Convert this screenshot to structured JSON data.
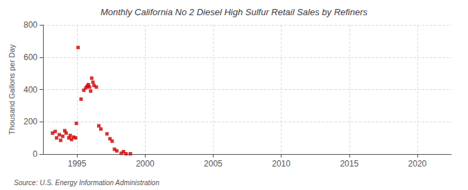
{
  "chart_data": {
    "type": "scatter",
    "title": "Monthly California No 2 Diesel High Sulfur Retail Sales by Refiners",
    "ylabel": "Thousand Gallons per Day",
    "annotations": [
      "Source: U.S. Energy Information Administration"
    ],
    "color": "#cc0000",
    "marker": "square",
    "grid": true,
    "xlim": [
      1992.5,
      2022.5
    ],
    "ylim": [
      0,
      800
    ],
    "xticks": [
      1995,
      2000,
      2005,
      2010,
      2015,
      2020
    ],
    "yticks": [
      0,
      200,
      400,
      600,
      800
    ],
    "x": [
      1993.2,
      1993.4,
      1993.5,
      1993.7,
      1993.8,
      1993.95,
      1994.1,
      1994.2,
      1994.4,
      1994.5,
      1994.6,
      1994.75,
      1994.9,
      1994.95,
      1995.08,
      1995.3,
      1995.5,
      1995.65,
      1995.75,
      1995.83,
      1995.92,
      1996.0,
      1996.08,
      1996.17,
      1996.25,
      1996.42,
      1996.6,
      1996.75,
      1997.2,
      1997.42,
      1997.58,
      1997.75,
      1997.92,
      1998.25,
      1998.42,
      1998.6,
      1998.92
    ],
    "values": [
      130,
      140,
      100,
      120,
      85,
      110,
      145,
      130,
      100,
      115,
      90,
      105,
      100,
      190,
      660,
      340,
      395,
      410,
      420,
      430,
      415,
      390,
      470,
      445,
      425,
      415,
      175,
      155,
      125,
      95,
      80,
      30,
      20,
      5,
      15,
      2,
      2
    ]
  }
}
